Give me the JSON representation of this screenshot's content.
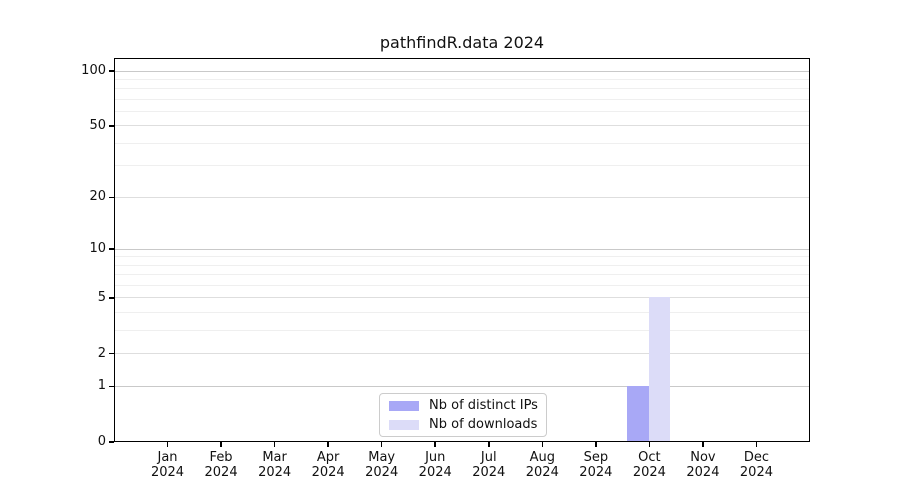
{
  "figure": {
    "title": "pathfindR.data 2024"
  },
  "chart_data": {
    "type": "bar",
    "title": "pathfindR.data 2024",
    "categories": [
      "Jan",
      "Feb",
      "Mar",
      "Apr",
      "May",
      "Jun",
      "Jul",
      "Aug",
      "Sep",
      "Oct",
      "Nov",
      "Dec"
    ],
    "x_year": "2024",
    "series": [
      {
        "name": "Nb of distinct IPs",
        "color": "#a8a8f6",
        "values": [
          0,
          0,
          0,
          0,
          0,
          0,
          0,
          0,
          0,
          1,
          0,
          0
        ]
      },
      {
        "name": "Nb of downloads",
        "color": "#dcdcf8",
        "values": [
          0,
          0,
          0,
          0,
          0,
          0,
          0,
          0,
          0,
          5,
          0,
          0
        ]
      }
    ],
    "xlabel": "",
    "ylabel": "",
    "y_axis": {
      "scale": "log1p",
      "ticks": [
        0,
        1,
        2,
        5,
        10,
        20,
        50,
        100
      ],
      "strong_grid_values": [
        1,
        10,
        100
      ],
      "medium_grid_values": [
        2,
        5,
        20,
        50
      ],
      "minor_gridlines": [
        3,
        4,
        6,
        7,
        8,
        9,
        30,
        40,
        60,
        70,
        80,
        90
      ],
      "range": [
        0,
        117
      ]
    },
    "grid": true,
    "legend": {
      "position": "lower-center-inside",
      "entries": [
        "Nb of distinct IPs",
        "Nb of downloads"
      ]
    }
  },
  "colors": {
    "bar_ips": "#a8a8f6",
    "bar_downloads": "#dcdcf8",
    "grid_strong": "#c9c9c9",
    "grid_medium": "#dedede",
    "grid_minor": "#efefef",
    "spine": "#000000"
  }
}
